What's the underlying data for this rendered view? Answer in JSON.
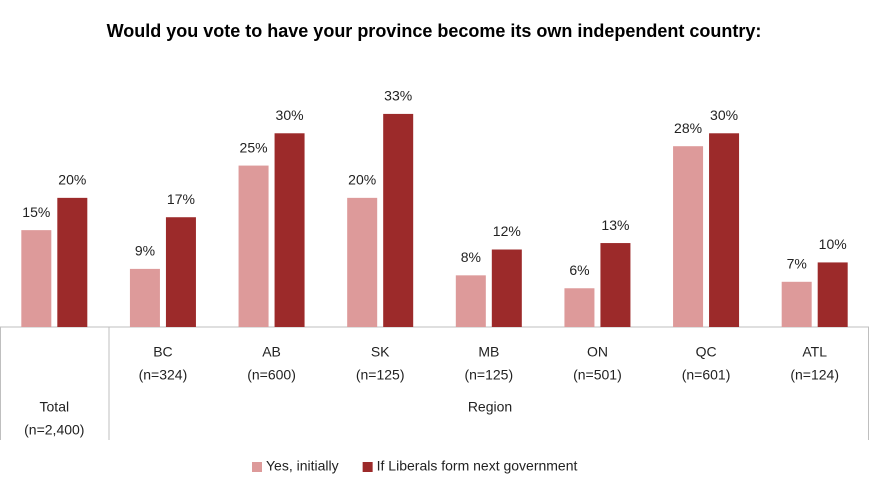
{
  "chart_data": {
    "type": "bar",
    "title": "Would you vote to have your province become its own independent country:",
    "categories": [
      "Total",
      "BC",
      "AB",
      "SK",
      "MB",
      "ON",
      "QC",
      "ATL"
    ],
    "sample_sizes": [
      "(n=2,400)",
      "(n=324)",
      "(n=600)",
      "(n=125)",
      "(n=125)",
      "(n=501)",
      "(n=601)",
      "(n=124)"
    ],
    "group_label": "Region",
    "series": [
      {
        "name": "Yes, initially",
        "color": "#dd9a9a",
        "values": [
          15,
          9,
          25,
          20,
          8,
          6,
          28,
          7
        ],
        "value_labels": [
          "15%",
          "9%",
          "25%",
          "20%",
          "8%",
          "6%",
          "28%",
          "7%"
        ]
      },
      {
        "name": "If Liberals form next government",
        "color": "#9c2a2a",
        "values": [
          20,
          17,
          30,
          33,
          12,
          13,
          30,
          10
        ],
        "value_labels": [
          "20%",
          "17%",
          "30%",
          "33%",
          "12%",
          "13%",
          "30%",
          "10%"
        ]
      }
    ],
    "ylim": [
      0,
      35
    ],
    "legend": "bottom"
  }
}
